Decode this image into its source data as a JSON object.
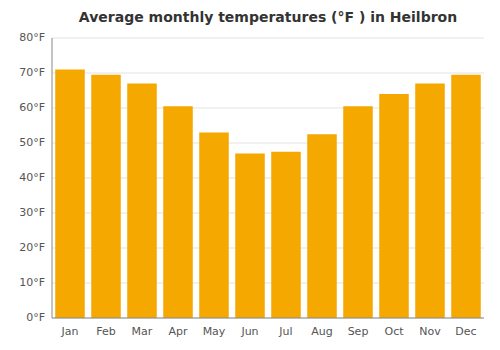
{
  "chart_data": {
    "type": "bar",
    "title": "Average monthly temperatures (°F ) in Heilbron",
    "categories": [
      "Jan",
      "Feb",
      "Mar",
      "Apr",
      "May",
      "Jun",
      "Jul",
      "Aug",
      "Sep",
      "Oct",
      "Nov",
      "Dec"
    ],
    "values": [
      71,
      69.5,
      67,
      60.5,
      53,
      47,
      47.5,
      52.5,
      60.5,
      64,
      67,
      69.5
    ],
    "color": "#F5A800",
    "ylim": [
      0,
      80
    ],
    "yticks": [
      {
        "value": 0,
        "label": "0°F"
      },
      {
        "value": 10,
        "label": "10°F"
      },
      {
        "value": 20,
        "label": "20°F"
      },
      {
        "value": 30,
        "label": "30°F"
      },
      {
        "value": 40,
        "label": "40°F"
      },
      {
        "value": 50,
        "label": "50°F"
      },
      {
        "value": 60,
        "label": "60°F"
      },
      {
        "value": 70,
        "label": "70°F"
      },
      {
        "value": 80,
        "label": "80°F"
      }
    ],
    "grid": true
  }
}
